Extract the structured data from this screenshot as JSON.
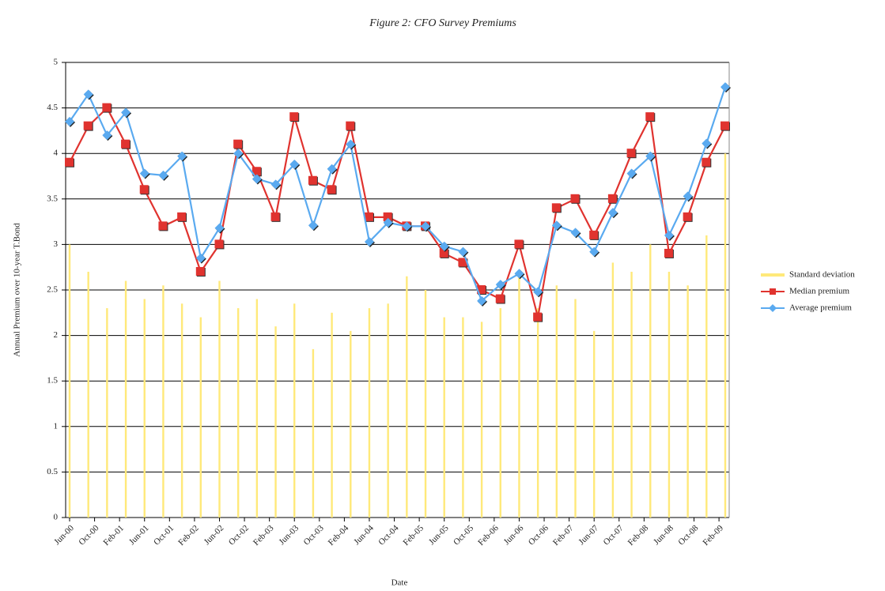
{
  "chart_data": {
    "type": "line",
    "title": "Figure 2: CFO Survey Premiums",
    "x_label": "Date",
    "y_label": "Annual Premium over 10-year T.Bond",
    "x": [
      "2000-06",
      "2000-09",
      "2000-12",
      "2001-03",
      "2001-06",
      "2001-09",
      "2001-12",
      "2002-03",
      "2002-06",
      "2002-09",
      "2002-12",
      "2003-03",
      "2003-06",
      "2003-09",
      "2003-12",
      "2004-03",
      "2004-06",
      "2004-09",
      "2004-12",
      "2005-03",
      "2005-06",
      "2005-09",
      "2005-12",
      "2006-03",
      "2006-06",
      "2006-09",
      "2006-12",
      "2007-03",
      "2007-06",
      "2007-09",
      "2007-12",
      "2008-03",
      "2008-06",
      "2008-09",
      "2008-12",
      "2009-03"
    ],
    "series": [
      {
        "name": "Standard deviation",
        "color": "#ffe97a",
        "type": "bar",
        "values": [
          3.0,
          2.7,
          2.3,
          2.6,
          2.4,
          2.55,
          2.35,
          2.2,
          2.6,
          2.3,
          2.4,
          2.1,
          2.35,
          1.85,
          2.25,
          2.05,
          2.3,
          2.35,
          2.65,
          2.5,
          2.2,
          2.2,
          2.15,
          2.3,
          2.7,
          2.3,
          2.55,
          2.4,
          2.05,
          2.8,
          2.7,
          3.0,
          2.7,
          2.55,
          3.1,
          4.0
        ]
      },
      {
        "name": "Median premium",
        "color": "#e0332f",
        "type": "line",
        "marker": "square",
        "values": [
          3.9,
          4.3,
          4.5,
          4.1,
          3.6,
          3.2,
          3.3,
          2.7,
          3.0,
          4.1,
          3.8,
          3.3,
          4.4,
          3.7,
          3.6,
          4.3,
          3.3,
          3.3,
          3.2,
          3.2,
          2.9,
          2.8,
          2.5,
          2.4,
          3.0,
          2.2,
          3.4,
          3.5,
          3.1,
          3.5,
          4.0,
          4.4,
          2.9,
          3.3,
          3.9,
          4.3
        ]
      },
      {
        "name": "Average premium",
        "color": "#5aaaf0",
        "type": "line",
        "marker": "diamond",
        "values": [
          4.35,
          4.65,
          4.2,
          4.45,
          3.78,
          3.76,
          3.97,
          2.85,
          3.18,
          4.0,
          3.72,
          3.66,
          3.88,
          3.21,
          3.83,
          4.1,
          3.03,
          3.24,
          3.2,
          3.2,
          2.98,
          2.92,
          2.38,
          2.56,
          2.68,
          2.48,
          3.21,
          3.13,
          2.92,
          3.35,
          3.78,
          3.97,
          3.1,
          3.53,
          4.11,
          4.73
        ]
      }
    ],
    "xlim": [
      "2000-06",
      "2009-03"
    ],
    "xticks": [
      {
        "value": "2000-06",
        "label": "Jun-00"
      },
      {
        "value": "2000-10",
        "label": "Oct-00"
      },
      {
        "value": "2001-02",
        "label": "Feb-01"
      },
      {
        "value": "2001-06",
        "label": "Jun-01"
      },
      {
        "value": "2001-10",
        "label": "Oct-01"
      },
      {
        "value": "2002-02",
        "label": "Feb-02"
      },
      {
        "value": "2002-06",
        "label": "Jun-02"
      },
      {
        "value": "2002-10",
        "label": "Oct-02"
      },
      {
        "value": "2003-02",
        "label": "Feb-03"
      },
      {
        "value": "2003-06",
        "label": "Jun-03"
      },
      {
        "value": "2003-10",
        "label": "Oct-03"
      },
      {
        "value": "2004-02",
        "label": "Feb-04"
      },
      {
        "value": "2004-06",
        "label": "Jun-04"
      },
      {
        "value": "2004-10",
        "label": "Oct-04"
      },
      {
        "value": "2005-02",
        "label": "Feb-05"
      },
      {
        "value": "2005-06",
        "label": "Jun-05"
      },
      {
        "value": "2005-10",
        "label": "Oct-05"
      },
      {
        "value": "2006-02",
        "label": "Feb-06"
      },
      {
        "value": "2006-06",
        "label": "Jun-06"
      },
      {
        "value": "2006-10",
        "label": "Oct-06"
      },
      {
        "value": "2007-02",
        "label": "Feb-07"
      },
      {
        "value": "2007-06",
        "label": "Jun-07"
      },
      {
        "value": "2007-10",
        "label": "Oct-07"
      },
      {
        "value": "2008-02",
        "label": "Feb-08"
      },
      {
        "value": "2008-06",
        "label": "Jun-08"
      },
      {
        "value": "2008-10",
        "label": "Oct-08"
      },
      {
        "value": "2009-02",
        "label": "Feb-09"
      }
    ],
    "ylim": [
      0,
      5
    ],
    "yticks": [
      0,
      0.5,
      1,
      1.5,
      2,
      2.5,
      3,
      3.5,
      4,
      4.5,
      5
    ],
    "grid": true,
    "legend": "right"
  }
}
